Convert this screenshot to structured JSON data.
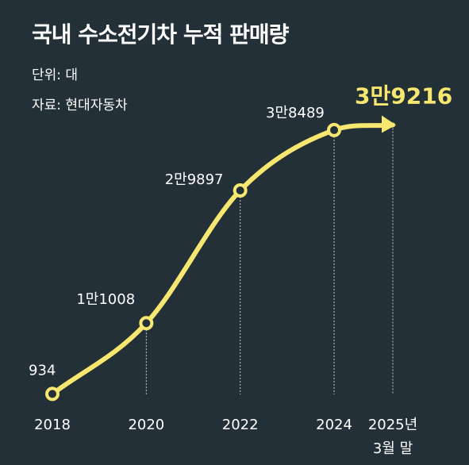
{
  "header": {
    "title": "국내 수소전기차 누적 판매량",
    "unit": "단위: 대",
    "source": "자료: 현대자동차"
  },
  "colors": {
    "background": "#233038",
    "line": "#f7e770",
    "marker_fill": "#233038",
    "text": "#ffffff",
    "guide": "#c8c8c8"
  },
  "chart_data": {
    "type": "line",
    "title": "국내 수소전기차 누적 판매량",
    "xlabel": "",
    "ylabel": "",
    "categories": [
      "2018",
      "2020",
      "2022",
      "2024",
      "2025년 3월 말"
    ],
    "x_labels": [
      {
        "line1": "2018",
        "line2": ""
      },
      {
        "line1": "2020",
        "line2": ""
      },
      {
        "line1": "2022",
        "line2": ""
      },
      {
        "line1": "2024",
        "line2": ""
      },
      {
        "line1": "2025년",
        "line2": "3월 말"
      }
    ],
    "x": [
      2018,
      2020,
      2022,
      2024,
      2025.25
    ],
    "values": [
      934,
      11008,
      29897,
      38489,
      39216
    ],
    "data_labels": [
      "934",
      "1만1008",
      "2만9897",
      "3만8489",
      "3만9216"
    ],
    "xlim": [
      2018,
      2025.25
    ],
    "ylim": [
      0,
      42000
    ],
    "grid": false,
    "legend": "none"
  }
}
